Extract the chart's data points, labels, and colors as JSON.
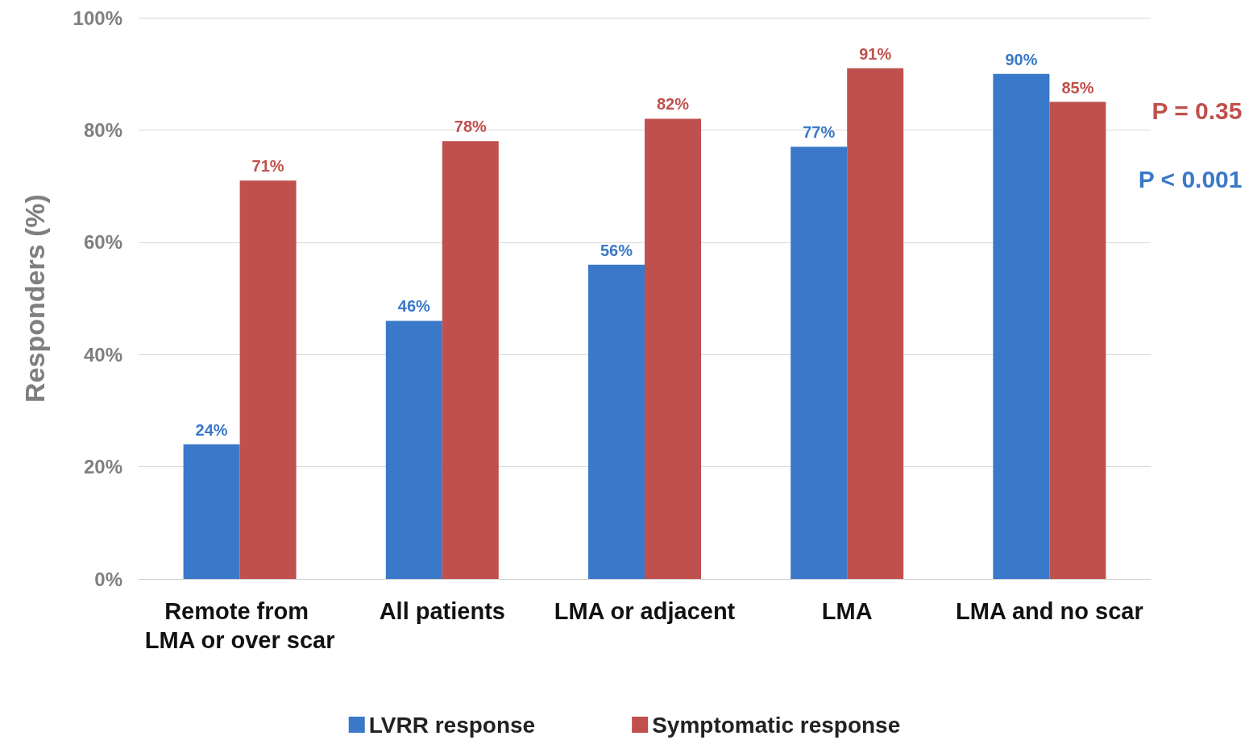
{
  "chart_data": {
    "type": "bar",
    "ylabel": "Responders (%)",
    "categories": [
      "Remote from LMA or over scar",
      "All patients",
      "LMA or adjacent",
      "LMA",
      "LMA and no scar"
    ],
    "series": [
      {
        "name": "LVRR response",
        "color": "#3a78c9",
        "values": [
          24,
          46,
          56,
          77,
          90
        ],
        "value_labels": [
          "24%",
          "46%",
          "56%",
          "77%",
          "90%"
        ]
      },
      {
        "name": "Symptomatic response",
        "color": "#c0504d",
        "values": [
          71,
          78,
          82,
          91,
          85
        ],
        "value_labels": [
          "71%",
          "78%",
          "82%",
          "91%",
          "85%"
        ]
      }
    ],
    "ylim": [
      0,
      100
    ],
    "yticks": [
      {
        "value": 0,
        "label": "0%"
      },
      {
        "value": 20,
        "label": "20%"
      },
      {
        "value": 40,
        "label": "40%"
      },
      {
        "value": 60,
        "label": "60%"
      },
      {
        "value": 80,
        "label": "80%"
      },
      {
        "value": 100,
        "label": "100%"
      }
    ],
    "grid": "y",
    "legend": "bottom",
    "annotations": [
      "P = 0.35",
      "P < 0.001"
    ]
  }
}
